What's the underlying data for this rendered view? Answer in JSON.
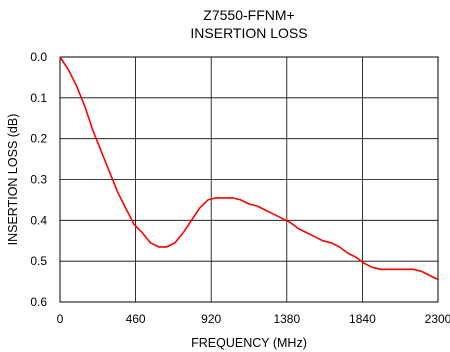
{
  "chart_data": {
    "type": "line",
    "title": "Z7550-FFNM+",
    "subtitle": "INSERTION LOSS",
    "xlabel": "FREQUENCY (MHz)",
    "ylabel": "INSERTION LOSS (dB)",
    "xlim": [
      0,
      2300
    ],
    "ylim": [
      0.0,
      0.6
    ],
    "y_inverted": true,
    "x_ticks": [
      "0",
      "460",
      "920",
      "1380",
      "1840",
      "2300"
    ],
    "x_tick_values": [
      0,
      460,
      920,
      1380,
      1840,
      2300
    ],
    "y_ticks": [
      "0.0",
      "0.1",
      "0.2",
      "0.3",
      "0.4",
      "0.5",
      "0.6"
    ],
    "y_tick_values": [
      0.0,
      0.1,
      0.2,
      0.3,
      0.4,
      0.5,
      0.6
    ],
    "grid": true,
    "series": [
      {
        "color": "#ff0000",
        "x": [
          0,
          50,
          100,
          150,
          200,
          250,
          300,
          350,
          400,
          450,
          500,
          550,
          600,
          650,
          700,
          750,
          800,
          850,
          900,
          950,
          1000,
          1050,
          1100,
          1150,
          1200,
          1250,
          1300,
          1350,
          1400,
          1450,
          1500,
          1550,
          1600,
          1650,
          1700,
          1750,
          1800,
          1850,
          1900,
          1950,
          2000,
          2050,
          2100,
          2150,
          2200,
          2250,
          2300
        ],
        "y": [
          0.0,
          0.03,
          0.07,
          0.12,
          0.18,
          0.23,
          0.28,
          0.33,
          0.37,
          0.41,
          0.43,
          0.455,
          0.465,
          0.465,
          0.455,
          0.43,
          0.4,
          0.37,
          0.35,
          0.345,
          0.345,
          0.345,
          0.35,
          0.36,
          0.365,
          0.375,
          0.385,
          0.395,
          0.405,
          0.42,
          0.43,
          0.44,
          0.45,
          0.455,
          0.465,
          0.48,
          0.49,
          0.505,
          0.515,
          0.52,
          0.52,
          0.52,
          0.52,
          0.52,
          0.525,
          0.535,
          0.545
        ]
      }
    ]
  }
}
